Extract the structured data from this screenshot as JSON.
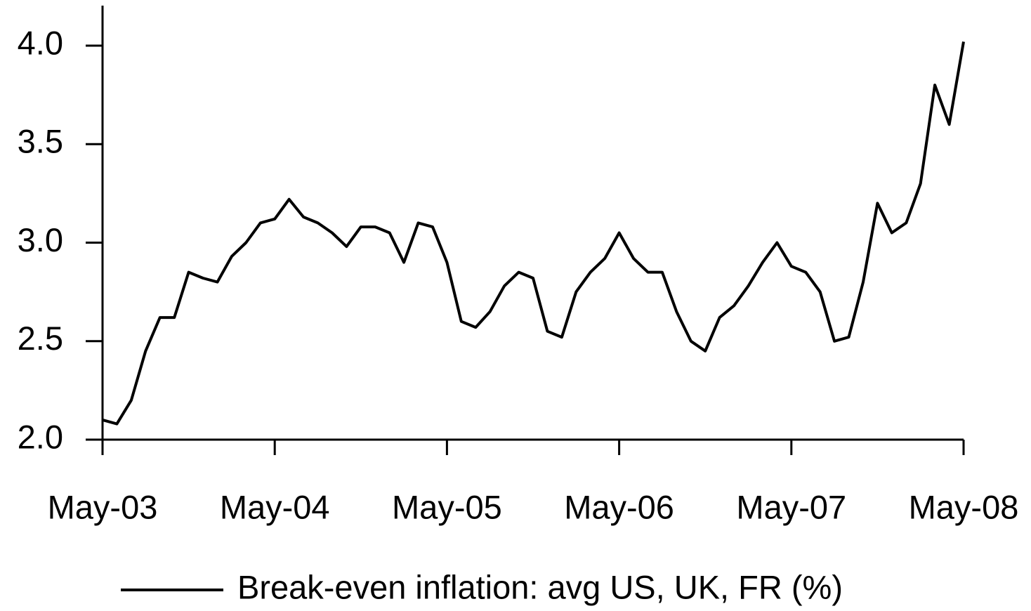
{
  "chart_data": {
    "type": "line",
    "categories": [
      "May-03",
      null,
      null,
      null,
      null,
      null,
      null,
      null,
      null,
      null,
      null,
      null,
      "May-04",
      null,
      null,
      null,
      null,
      null,
      null,
      null,
      null,
      null,
      null,
      null,
      "May-05",
      null,
      null,
      null,
      null,
      null,
      null,
      null,
      null,
      null,
      null,
      null,
      "May-06",
      null,
      null,
      null,
      null,
      null,
      null,
      null,
      null,
      null,
      null,
      null,
      "May-07",
      null,
      null,
      null,
      null,
      null,
      null,
      null,
      null,
      null,
      null,
      null,
      "May-08"
    ],
    "series": [
      {
        "name": "Break-even inflation: avg US, UK, FR (%)",
        "color": "#000000",
        "values": [
          2.1,
          2.08,
          2.2,
          2.45,
          2.62,
          2.62,
          2.85,
          2.82,
          2.8,
          2.93,
          3.0,
          3.1,
          3.12,
          3.22,
          3.13,
          3.1,
          3.05,
          2.98,
          3.08,
          3.08,
          3.05,
          2.9,
          3.1,
          3.08,
          2.9,
          2.6,
          2.57,
          2.65,
          2.78,
          2.85,
          2.82,
          2.55,
          2.52,
          2.75,
          2.85,
          2.92,
          3.05,
          2.92,
          2.85,
          2.85,
          2.65,
          2.5,
          2.45,
          2.62,
          2.68,
          2.78,
          2.9,
          3.0,
          2.88,
          2.85,
          2.75,
          2.5,
          2.52,
          2.8,
          3.2,
          3.05,
          3.1,
          3.3,
          3.8,
          3.6,
          4.02
        ]
      }
    ],
    "ylim": [
      2,
      4
    ],
    "yticks": [
      {
        "value": 2,
        "label": "2.0"
      },
      {
        "value": 2.5,
        "label": "2.5"
      },
      {
        "value": 3,
        "label": "3.0"
      },
      {
        "value": 3.5,
        "label": "3.5"
      },
      {
        "value": 4,
        "label": "4.0"
      }
    ],
    "legend": "bottom"
  }
}
